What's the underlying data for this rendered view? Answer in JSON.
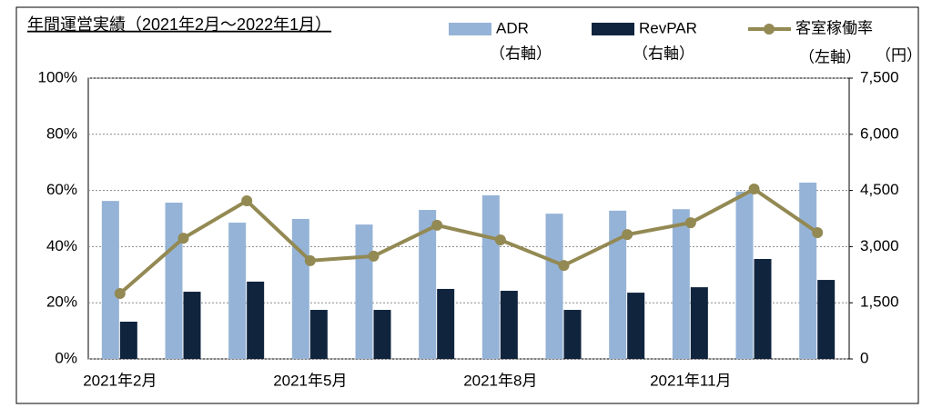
{
  "chart_data": {
    "type": "bar_line",
    "title": "年間運営実績（2021年2月～2022年1月）",
    "categories": [
      "2021年2月",
      null,
      null,
      "2021年5月",
      null,
      null,
      "2021年8月",
      null,
      null,
      "2021年11月",
      null,
      null
    ],
    "series": [
      {
        "name": "ADR",
        "axis_note": "（右軸）",
        "type": "bar",
        "axis": "y2",
        "color": "#95b3d7",
        "values": [
          4220,
          4175,
          3640,
          3740,
          3590,
          3980,
          4370,
          3880,
          3960,
          4000,
          4470,
          4710
        ]
      },
      {
        "name": "RevPAR",
        "axis_note": "（右軸）",
        "type": "bar",
        "axis": "y2",
        "color": "#10243e",
        "values": [
          995,
          1795,
          2065,
          1310,
          1310,
          1870,
          1820,
          1310,
          1770,
          1915,
          2670,
          2110
        ]
      },
      {
        "name": "客室稼働率",
        "axis_note": "（左軸）",
        "type": "line",
        "axis": "y",
        "color": "#938953",
        "values": [
          23.3,
          43.0,
          56.3,
          35.0,
          36.6,
          47.6,
          42.4,
          33.3,
          44.3,
          48.5,
          60.5,
          45.0
        ]
      }
    ],
    "y2_unit": "（円）",
    "ylim": [
      0,
      100
    ],
    "yticks": [
      {
        "value": 0,
        "label": "0%"
      },
      {
        "value": 20,
        "label": "20%"
      },
      {
        "value": 40,
        "label": "40%"
      },
      {
        "value": 60,
        "label": "60%"
      },
      {
        "value": 80,
        "label": "80%"
      },
      {
        "value": 100,
        "label": "100%"
      }
    ],
    "y2lim": [
      0,
      7500
    ],
    "y2ticks": [
      0,
      {
        "value": 1500,
        "label": "1,500"
      },
      {
        "value": 3000,
        "label": "3,000"
      },
      {
        "value": 4500,
        "label": "4,500"
      },
      {
        "value": 6000,
        "label": "6,000"
      },
      {
        "value": 7500,
        "label": "7,500"
      }
    ],
    "grid": true
  }
}
